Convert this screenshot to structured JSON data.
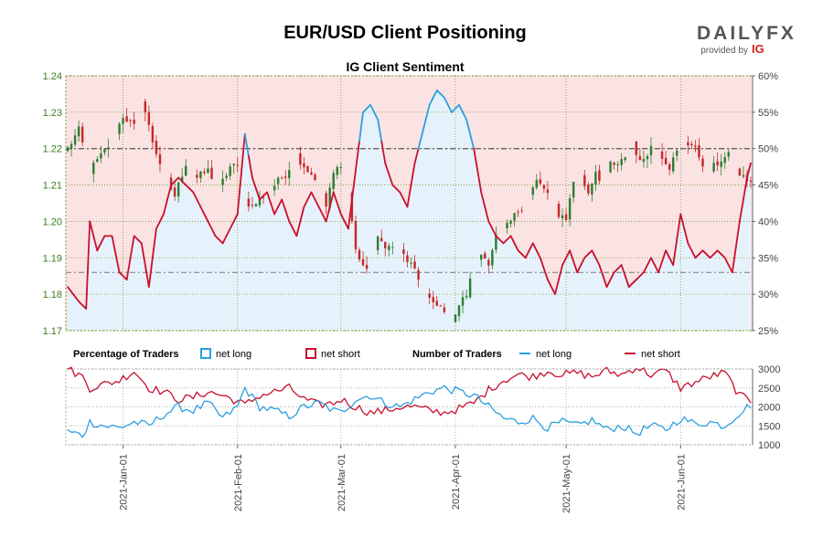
{
  "chart_data": {
    "type": "candlestick_with_sentiment",
    "title": "EUR/USD Client Positioning",
    "subtitle": "IG Client Sentiment",
    "brand": {
      "name": "DAILYFX",
      "provided_by": "provided by",
      "provider": "IG"
    },
    "price_axis": {
      "ticks": [
        "1.17",
        "1.18",
        "1.19",
        "1.20",
        "1.21",
        "1.22",
        "1.23",
        "1.24"
      ],
      "range": [
        1.17,
        1.24
      ]
    },
    "percent_axis": {
      "ticks": [
        "25%",
        "30%",
        "35%",
        "40%",
        "45%",
        "50%",
        "55%",
        "60%"
      ],
      "range": [
        25,
        60
      ]
    },
    "traders_axis": {
      "ticks": [
        "1000",
        "1500",
        "2000",
        "2500",
        "3000"
      ],
      "range": [
        1000,
        3000
      ]
    },
    "x_ticks": [
      "2021-Jan-01",
      "2021-Feb-01",
      "2021-Mar-01",
      "2021-Apr-01",
      "2021-May-01",
      "2021-Jun-01"
    ],
    "x_tick_day_index": [
      15,
      46,
      74,
      105,
      135,
      166
    ],
    "day_count": 186,
    "legend": {
      "percentage_heading": "Percentage of Traders",
      "number_heading": "Number of Traders",
      "net_long": "net long",
      "net_short": "net short"
    },
    "colors": {
      "net_long": "#2b9fe0",
      "net_short": "#c8102e",
      "up": "#2e7d32",
      "down": "#c62828",
      "long_zone": "#e6f2fb",
      "short_zone": "#fbe3e3"
    },
    "reference_levels": {
      "fifty_percent": 50,
      "price_line": 1.186
    },
    "price_keypoints": [
      [
        0,
        1.22
      ],
      [
        3,
        1.225
      ],
      [
        6,
        1.214
      ],
      [
        9,
        1.218
      ],
      [
        12,
        1.222
      ],
      [
        15,
        1.229
      ],
      [
        18,
        1.226
      ],
      [
        20,
        1.234
      ],
      [
        23,
        1.222
      ],
      [
        26,
        1.213
      ],
      [
        29,
        1.207
      ],
      [
        32,
        1.216
      ],
      [
        35,
        1.212
      ],
      [
        38,
        1.214
      ],
      [
        41,
        1.209
      ],
      [
        44,
        1.215
      ],
      [
        46,
        1.215
      ],
      [
        48,
        1.206
      ],
      [
        50,
        1.204
      ],
      [
        53,
        1.207
      ],
      [
        56,
        1.21
      ],
      [
        59,
        1.213
      ],
      [
        62,
        1.218
      ],
      [
        65,
        1.214
      ],
      [
        68,
        1.211
      ],
      [
        70,
        1.204
      ],
      [
        72,
        1.213
      ],
      [
        74,
        1.216
      ],
      [
        76,
        1.208
      ],
      [
        78,
        1.192
      ],
      [
        81,
        1.186
      ],
      [
        84,
        1.195
      ],
      [
        87,
        1.193
      ],
      [
        90,
        1.192
      ],
      [
        93,
        1.188
      ],
      [
        96,
        1.182
      ],
      [
        99,
        1.177
      ],
      [
        102,
        1.176
      ],
      [
        104,
        1.173
      ],
      [
        106,
        1.177
      ],
      [
        108,
        1.18
      ],
      [
        110,
        1.187
      ],
      [
        112,
        1.191
      ],
      [
        114,
        1.189
      ],
      [
        116,
        1.196
      ],
      [
        118,
        1.197
      ],
      [
        120,
        1.2
      ],
      [
        122,
        1.203
      ],
      [
        124,
        1.205
      ],
      [
        127,
        1.211
      ],
      [
        129,
        1.209
      ],
      [
        131,
        1.206
      ],
      [
        133,
        1.202
      ],
      [
        135,
        1.201
      ],
      [
        137,
        1.211
      ],
      [
        139,
        1.212
      ],
      [
        141,
        1.208
      ],
      [
        143,
        1.214
      ],
      [
        145,
        1.21
      ],
      [
        147,
        1.216
      ],
      [
        149,
        1.215
      ],
      [
        151,
        1.218
      ],
      [
        153,
        1.222
      ],
      [
        155,
        1.216
      ],
      [
        157,
        1.219
      ],
      [
        159,
        1.222
      ],
      [
        161,
        1.218
      ],
      [
        163,
        1.215
      ],
      [
        165,
        1.219
      ],
      [
        167,
        1.222
      ],
      [
        169,
        1.221
      ],
      [
        171,
        1.218
      ],
      [
        173,
        1.214
      ],
      [
        175,
        1.215
      ],
      [
        177,
        1.217
      ],
      [
        179,
        1.218
      ],
      [
        181,
        1.214
      ],
      [
        183,
        1.212
      ],
      [
        185,
        1.211
      ]
    ],
    "net_long_pct_keypoints": [
      [
        0,
        31
      ],
      [
        3,
        29
      ],
      [
        5,
        28
      ],
      [
        6,
        40
      ],
      [
        8,
        36
      ],
      [
        10,
        38
      ],
      [
        12,
        38
      ],
      [
        14,
        33
      ],
      [
        16,
        32
      ],
      [
        18,
        38
      ],
      [
        20,
        37
      ],
      [
        22,
        31
      ],
      [
        24,
        39
      ],
      [
        26,
        41
      ],
      [
        28,
        45
      ],
      [
        30,
        46
      ],
      [
        32,
        45
      ],
      [
        34,
        44
      ],
      [
        36,
        42
      ],
      [
        38,
        40
      ],
      [
        40,
        38
      ],
      [
        42,
        37
      ],
      [
        44,
        39
      ],
      [
        46,
        41
      ],
      [
        48,
        52
      ],
      [
        50,
        46
      ],
      [
        52,
        43
      ],
      [
        54,
        44
      ],
      [
        56,
        41
      ],
      [
        58,
        43
      ],
      [
        60,
        40
      ],
      [
        62,
        38
      ],
      [
        64,
        42
      ],
      [
        66,
        44
      ],
      [
        68,
        42
      ],
      [
        70,
        40
      ],
      [
        72,
        44
      ],
      [
        74,
        41
      ],
      [
        76,
        39
      ],
      [
        78,
        47
      ],
      [
        80,
        55
      ],
      [
        82,
        56
      ],
      [
        84,
        54
      ],
      [
        86,
        48
      ],
      [
        88,
        45
      ],
      [
        90,
        44
      ],
      [
        92,
        42
      ],
      [
        94,
        48
      ],
      [
        96,
        52
      ],
      [
        98,
        56
      ],
      [
        100,
        58
      ],
      [
        102,
        57
      ],
      [
        104,
        55
      ],
      [
        106,
        56
      ],
      [
        108,
        54
      ],
      [
        110,
        50
      ],
      [
        112,
        44
      ],
      [
        114,
        40
      ],
      [
        116,
        38
      ],
      [
        118,
        37
      ],
      [
        120,
        38
      ],
      [
        122,
        36
      ],
      [
        124,
        35
      ],
      [
        126,
        37
      ],
      [
        128,
        35
      ],
      [
        130,
        32
      ],
      [
        132,
        30
      ],
      [
        134,
        34
      ],
      [
        136,
        36
      ],
      [
        138,
        33
      ],
      [
        140,
        35
      ],
      [
        142,
        36
      ],
      [
        144,
        34
      ],
      [
        146,
        31
      ],
      [
        148,
        33
      ],
      [
        150,
        34
      ],
      [
        152,
        31
      ],
      [
        154,
        32
      ],
      [
        156,
        33
      ],
      [
        158,
        35
      ],
      [
        160,
        33
      ],
      [
        162,
        36
      ],
      [
        164,
        34
      ],
      [
        166,
        41
      ],
      [
        168,
        37
      ],
      [
        170,
        35
      ],
      [
        172,
        36
      ],
      [
        174,
        35
      ],
      [
        176,
        36
      ],
      [
        178,
        35
      ],
      [
        180,
        33
      ],
      [
        182,
        40
      ],
      [
        184,
        46
      ],
      [
        185,
        48
      ]
    ],
    "net_long_traders_keypoints": [
      [
        0,
        1350
      ],
      [
        4,
        1250
      ],
      [
        6,
        1600
      ],
      [
        10,
        1500
      ],
      [
        14,
        1450
      ],
      [
        18,
        1600
      ],
      [
        22,
        1500
      ],
      [
        26,
        1800
      ],
      [
        30,
        2000
      ],
      [
        34,
        1900
      ],
      [
        38,
        2100
      ],
      [
        42,
        1700
      ],
      [
        46,
        2000
      ],
      [
        48,
        2500
      ],
      [
        52,
        2000
      ],
      [
        56,
        1900
      ],
      [
        60,
        1750
      ],
      [
        64,
        2000
      ],
      [
        68,
        2100
      ],
      [
        72,
        1900
      ],
      [
        74,
        1850
      ],
      [
        78,
        2200
      ],
      [
        82,
        2300
      ],
      [
        86,
        2100
      ],
      [
        90,
        2000
      ],
      [
        94,
        2200
      ],
      [
        98,
        2400
      ],
      [
        102,
        2500
      ],
      [
        106,
        2400
      ],
      [
        110,
        2300
      ],
      [
        114,
        2000
      ],
      [
        118,
        1700
      ],
      [
        122,
        1600
      ],
      [
        126,
        1700
      ],
      [
        130,
        1450
      ],
      [
        134,
        1600
      ],
      [
        138,
        1500
      ],
      [
        142,
        1650
      ],
      [
        146,
        1400
      ],
      [
        150,
        1500
      ],
      [
        154,
        1300
      ],
      [
        158,
        1500
      ],
      [
        162,
        1400
      ],
      [
        166,
        1700
      ],
      [
        170,
        1550
      ],
      [
        174,
        1600
      ],
      [
        178,
        1500
      ],
      [
        182,
        1850
      ],
      [
        185,
        2050
      ]
    ],
    "net_short_traders_keypoints": [
      [
        0,
        3000
      ],
      [
        4,
        2800
      ],
      [
        6,
        2500
      ],
      [
        10,
        2600
      ],
      [
        14,
        2700
      ],
      [
        18,
        2950
      ],
      [
        22,
        2500
      ],
      [
        26,
        2400
      ],
      [
        30,
        2200
      ],
      [
        34,
        2250
      ],
      [
        38,
        2400
      ],
      [
        42,
        2300
      ],
      [
        46,
        2150
      ],
      [
        48,
        2050
      ],
      [
        52,
        2300
      ],
      [
        56,
        2400
      ],
      [
        60,
        2500
      ],
      [
        64,
        2200
      ],
      [
        68,
        2050
      ],
      [
        72,
        2100
      ],
      [
        74,
        2200
      ],
      [
        78,
        2000
      ],
      [
        82,
        1850
      ],
      [
        86,
        1900
      ],
      [
        90,
        2000
      ],
      [
        94,
        2000
      ],
      [
        98,
        1900
      ],
      [
        102,
        1850
      ],
      [
        106,
        1950
      ],
      [
        110,
        2100
      ],
      [
        114,
        2450
      ],
      [
        118,
        2700
      ],
      [
        122,
        2850
      ],
      [
        126,
        2800
      ],
      [
        130,
        2950
      ],
      [
        134,
        2850
      ],
      [
        138,
        2900
      ],
      [
        142,
        2800
      ],
      [
        146,
        2950
      ],
      [
        150,
        2850
      ],
      [
        154,
        3050
      ],
      [
        158,
        2850
      ],
      [
        162,
        2950
      ],
      [
        166,
        2500
      ],
      [
        170,
        2650
      ],
      [
        174,
        2800
      ],
      [
        178,
        2900
      ],
      [
        182,
        2300
      ],
      [
        185,
        2150
      ]
    ]
  }
}
